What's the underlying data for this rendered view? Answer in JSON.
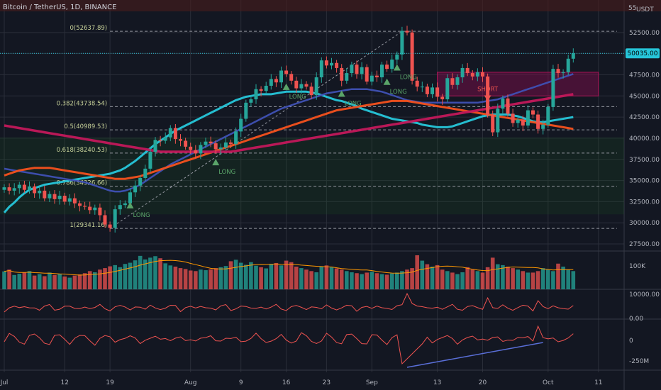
{
  "header": {
    "symbol_title": "Bitcoin / TetherUS, 1D, BINANCE",
    "currency": "USDT",
    "top_tick": "55"
  },
  "colors": {
    "background": "#131722",
    "grid": "#2a2e39",
    "candle_up": "#26a69a",
    "candle_down": "#ef5350",
    "ma_fast": "#26c6da",
    "ma_mid": "#3f51b5",
    "ma_orange": "#f4511e",
    "ma_crimson": "#c2185b",
    "fib_text": "#c8d29a",
    "long_marker": "#5aa469",
    "short_marker": "#ef5350",
    "price_tag": "#26c6da",
    "divergence_line": "#5a6fd8",
    "oscillator": "#ef5350"
  },
  "chart_data": [
    {
      "type": "candlestick",
      "title": "Bitcoin / TetherUS, 1D, BINANCE",
      "y_unit": "USDT",
      "ylim": [
        27000,
        55000
      ],
      "y_ticks": [
        27500,
        30000,
        32500,
        35000,
        37500,
        40000,
        42500,
        45000,
        47500,
        50000,
        52500
      ],
      "y_tick_labels": [
        "27500.00",
        "30000.00",
        "32500.00",
        "35000.00",
        "37500.00",
        "40000.00",
        "42500.00",
        "45000.00",
        "47500.00",
        "50000.00",
        "52500.00"
      ],
      "x_tick_labels": [
        "Jul",
        "12",
        "19",
        "Aug",
        "9",
        "16",
        "23",
        "Sep",
        "13",
        "20",
        "Oct",
        "11"
      ],
      "last_price": "50035.00",
      "close": [
        34200,
        33800,
        34100,
        34500,
        33900,
        34300,
        33500,
        33800,
        32900,
        33400,
        32800,
        33200,
        32500,
        32900,
        32300,
        32000,
        31900,
        31500,
        31800,
        30900,
        29800,
        29400,
        31600,
        32100,
        32300,
        33600,
        34400,
        35300,
        36400,
        38400,
        39800,
        39700,
        40100,
        41200,
        39900,
        39700,
        39000,
        38600,
        38200,
        39200,
        39600,
        39400,
        38700,
        38900,
        39500,
        39300,
        40800,
        42300,
        44200,
        44600,
        45800,
        45600,
        46200,
        47000,
        46600,
        48000,
        47600,
        46800,
        45900,
        46400,
        46100,
        45100,
        47200,
        49200,
        48600,
        48900,
        48300,
        46800,
        47700,
        48700,
        47600,
        48400,
        46700,
        47400,
        47200,
        48700,
        48200,
        49300,
        49900,
        52700,
        52500,
        46800,
        46100,
        46100,
        45200,
        46000,
        44900,
        44600,
        47100,
        46300,
        47200,
        48300,
        47700,
        47300,
        47800,
        47300,
        42800,
        40700,
        43500,
        44700,
        42900,
        41800,
        42200,
        41500,
        43300,
        42800,
        41100,
        41600,
        43700,
        48200,
        47700,
        47800,
        49400,
        50035
      ],
      "series": [
        {
          "name": "",
          "values": [
            31200,
            31900,
            32400,
            33000,
            33500,
            33900,
            34100,
            34300,
            34500,
            34600,
            34700,
            34800,
            34900,
            35000,
            35100,
            35200,
            35300,
            35400,
            35500,
            35600,
            35700,
            35800,
            36000,
            36200,
            36500,
            36900,
            37300,
            37800,
            38300,
            38800,
            39300,
            39700,
            40100,
            40500,
            40900,
            41200,
            41500,
            41800,
            42100,
            42400,
            42700,
            43000,
            43300,
            43600,
            43900,
            44200,
            44500,
            44700,
            44900,
            45000,
            45100,
            45200,
            45200,
            45200,
            45300,
            45400,
            45500,
            45500,
            45500,
            45500,
            45500,
            45400,
            45300,
            45100,
            44900,
            44700,
            44500,
            44400,
            44200,
            44000,
            43800,
            43500,
            43300,
            43100,
            42900,
            42700,
            42500,
            42300,
            42200,
            42100,
            42000,
            41900,
            41800,
            41600,
            41500,
            41400,
            41300,
            41300,
            41300,
            41400,
            41600,
            41800,
            42000,
            42200,
            42400,
            42600,
            42700,
            42800,
            42800,
            42800,
            42800,
            42700,
            42600,
            42400,
            42200,
            42000,
            41900,
            41900,
            42000,
            42100,
            42200,
            42300,
            42400,
            42500
          ]
        },
        {
          "name": "",
          "values": [
            36400,
            36300,
            36200,
            36100,
            36000,
            35900,
            35800,
            35700,
            35600,
            35500,
            35400,
            35300,
            35200,
            35100,
            35000,
            34900,
            34800,
            34600,
            34400,
            34200,
            34000,
            33800,
            33700,
            33700,
            33800,
            34000,
            34200,
            34500,
            34900,
            35300,
            35700,
            36100,
            36500,
            36900,
            37200,
            37500,
            37800,
            38100,
            38400,
            38700,
            39000,
            39300,
            39600,
            39900,
            40200,
            40500,
            40800,
            41100,
            41400,
            41700,
            42000,
            42300,
            42600,
            42900,
            43200,
            43500,
            43700,
            43900,
            44100,
            44300,
            44500,
            44700,
            44900,
            45100,
            45300,
            45400,
            45500,
            45600,
            45700,
            45800,
            45800,
            45800,
            45800,
            45700,
            45600,
            45500,
            45300,
            45100,
            44900,
            44700,
            44500,
            44400,
            44300,
            44200,
            44200,
            44200,
            44200,
            44200,
            44200,
            44200,
            44200,
            44200,
            44200,
            44200,
            44200,
            44300,
            44400,
            44500,
            44600,
            44800,
            45000,
            45200,
            45400,
            45600,
            45800,
            46000,
            46200,
            46400,
            46600,
            46800,
            47000,
            47200,
            47400,
            47600
          ]
        },
        {
          "name": "",
          "values": [
            35600,
            35800,
            36000,
            36200,
            36300,
            36400,
            36500,
            36500,
            36500,
            36500,
            36400,
            36300,
            36200,
            36100,
            36000,
            35900,
            35800,
            35700,
            35600,
            35500,
            35400,
            35300,
            35200,
            35200,
            35200,
            35300,
            35400,
            35500,
            35700,
            35900,
            36100,
            36300,
            36500,
            36700,
            36900,
            37100,
            37300,
            37500,
            37700,
            37900,
            38100,
            38300,
            38500,
            38700,
            38900,
            39100,
            39300,
            39500,
            39700,
            39900,
            40100,
            40300,
            40500,
            40700,
            40900,
            41100,
            41300,
            41500,
            41700,
            41900,
            42100,
            42300,
            42500,
            42700,
            42900,
            43100,
            43300,
            43400,
            43500,
            43600,
            43700,
            43800,
            43900,
            44000,
            44100,
            44200,
            44300,
            44400,
            44400,
            44400,
            44400,
            44300,
            44200,
            44100,
            44000,
            43900,
            43800,
            43700,
            43600,
            43500,
            43400,
            43300,
            43200,
            43100,
            43000,
            42900,
            42800,
            42700,
            42600,
            42500,
            42400,
            42300,
            42200,
            42100,
            42000,
            41900,
            41800,
            41700,
            41600,
            41500,
            41400,
            41300,
            41200,
            41100
          ]
        },
        {
          "name": "",
          "values": [
            41500,
            41400,
            41300,
            41200,
            41100,
            41000,
            40900,
            40800,
            40700,
            40600,
            40500,
            40400,
            40300,
            40200,
            40100,
            40000,
            39900,
            39800,
            39700,
            39600,
            39500,
            39400,
            39300,
            39200,
            39100,
            39000,
            38900,
            38800,
            38700,
            38600,
            38500,
            38400,
            38400,
            38400,
            38400,
            38400,
            38400,
            38400,
            38400,
            38400,
            38400,
            38400,
            38400,
            38400,
            38400,
            38400,
            38500,
            38600,
            38700,
            38800,
            38900,
            39000,
            39100,
            39200,
            39300,
            39400,
            39500,
            39600,
            39700,
            39800,
            39900,
            40000,
            40100,
            40200,
            40300,
            40400,
            40500,
            40600,
            40700,
            40800,
            40900,
            41000,
            41100,
            41200,
            41300,
            41400,
            41500,
            41600,
            41700,
            41800,
            41900,
            42000,
            42100,
            42200,
            42300,
            42400,
            42500,
            42600,
            42700,
            42800,
            42900,
            43000,
            43100,
            43200,
            43300,
            43400,
            43500,
            43600,
            43700,
            43800,
            43900,
            44000,
            44100,
            44200,
            44300,
            44400,
            44500,
            44600,
            44700,
            44800,
            44900,
            45000,
            45100,
            45200
          ]
        }
      ],
      "fib_levels": [
        {
          "label": "0(52637.89)",
          "value": 52637.89
        },
        {
          "label": "0.382(43738.54)",
          "value": 43738.54
        },
        {
          "label": "0.5(40989.53)",
          "value": 40989.53
        },
        {
          "label": "0.618(38240.53)",
          "value": 38240.53
        },
        {
          "label": "0.786(34326.66)",
          "value": 34326.66
        },
        {
          "label": "1(29341.16)",
          "value": 29341.16
        }
      ],
      "signals": [
        {
          "label": "LONG",
          "index": 25
        },
        {
          "label": "LONG",
          "index": 42
        },
        {
          "label": "LONG",
          "index": 56
        },
        {
          "label": "LONG",
          "index": 67
        },
        {
          "label": "LONG",
          "index": 76
        },
        {
          "label": "LONG",
          "index": 78
        },
        {
          "label": "SHORT",
          "index": 96
        }
      ]
    },
    {
      "type": "bar",
      "title": "",
      "y_tick_labels": [
        "100K"
      ],
      "values": [
        60,
        66,
        48,
        52,
        57,
        61,
        46,
        51,
        44,
        56,
        48,
        52,
        43,
        39,
        46,
        50,
        54,
        61,
        57,
        66,
        71,
        77,
        81,
        74,
        85,
        89,
        97,
        112,
        100,
        106,
        111,
        104,
        87,
        80,
        76,
        71,
        68,
        63,
        61,
        66,
        64,
        67,
        71,
        74,
        78,
        94,
        99,
        89,
        82,
        91,
        79,
        74,
        70,
        85,
        88,
        80,
        96,
        91,
        76,
        71,
        66,
        61,
        57,
        76,
        80,
        74,
        70,
        66,
        61,
        57,
        54,
        51,
        56,
        59,
        54,
        51,
        49,
        53,
        56,
        61,
        66,
        71,
        114,
        96,
        84,
        76,
        81,
        66,
        61,
        56,
        51,
        57,
        74,
        66,
        61,
        56,
        74,
        106,
        84,
        81,
        76,
        71,
        66,
        61,
        56,
        56,
        61,
        71,
        66,
        61,
        86,
        76,
        66,
        61
      ]
    },
    {
      "type": "line",
      "title": "",
      "y_tick_labels": [
        "10000.00",
        "0.00"
      ]
    },
    {
      "type": "line",
      "title": "",
      "y_tick_labels": [
        "0",
        "-250M"
      ]
    }
  ]
}
